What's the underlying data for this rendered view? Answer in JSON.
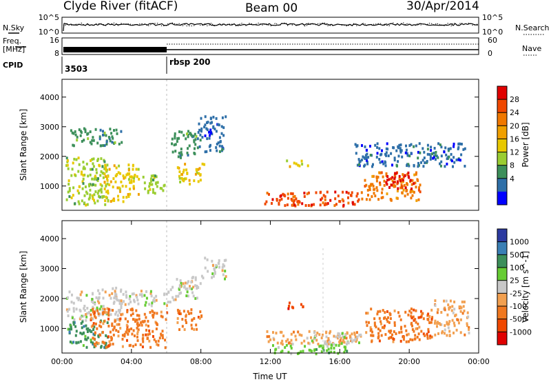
{
  "header": {
    "station": "Clyde River (fitACF)",
    "beam": "Beam 00",
    "date": "30/Apr/2014"
  },
  "side_labels": {
    "nsky": "N.Sky",
    "nsearch": "N.Search",
    "freq_line1": "Freq.",
    "freq_line2": "[MHz]",
    "nave": "Nave",
    "cpid": "CPID"
  },
  "cpid_segments": [
    {
      "label": "3503",
      "start_hour": 0,
      "end_hour": 6
    },
    {
      "label": "rbsp 200",
      "start_hour": 6,
      "end_hour": 24
    }
  ],
  "chart_data": [
    {
      "type": "line",
      "panel": "noise",
      "left_ticks": [
        "10^5",
        "10^0"
      ],
      "right_ticks": [
        "10^5",
        "10^0"
      ],
      "series": [
        {
          "name": "N.Sky"
        },
        {
          "name": "N.Search"
        }
      ]
    },
    {
      "type": "line",
      "panel": "frequency",
      "left_ticks": [
        "16",
        "8"
      ],
      "right_ticks": [
        "60",
        "0"
      ],
      "series": [
        {
          "name": "Freq."
        },
        {
          "name": "Nave"
        }
      ]
    },
    {
      "type": "heatmap",
      "panel": "power",
      "ylabel": "Slant Range [km]",
      "yticks": [
        1000,
        2000,
        3000,
        4000
      ],
      "ylim": [
        180,
        4600
      ],
      "xlim": [
        0,
        24
      ],
      "colorbar_label": "Power [dB]",
      "colorbar_ticks": [
        "28",
        "24",
        "20",
        "16",
        "12",
        "8",
        "4"
      ],
      "colors": [
        "#e00000",
        "#f04800",
        "#f07800",
        "#f0a000",
        "#e8c800",
        "#9acd32",
        "#3c8f5a",
        "#2e6fa8",
        "#0000ff"
      ],
      "patches": [
        {
          "x0": 0.2,
          "x1": 2.6,
          "y0": 400,
          "y1": 2000,
          "c": 5
        },
        {
          "x0": 2.4,
          "x1": 4.4,
          "y0": 500,
          "y1": 1800,
          "c": 4
        },
        {
          "x0": 4.4,
          "x1": 6.0,
          "y0": 800,
          "y1": 1400,
          "c": 5
        },
        {
          "x0": 0.4,
          "x1": 3.4,
          "y0": 2400,
          "y1": 3000,
          "c": 6
        },
        {
          "x0": 6.6,
          "x1": 8.2,
          "y0": 1100,
          "y1": 1800,
          "c": 4
        },
        {
          "x0": 6.2,
          "x1": 7.8,
          "y0": 2000,
          "y1": 2900,
          "c": 6
        },
        {
          "x0": 7.8,
          "x1": 9.4,
          "y0": 2200,
          "y1": 3400,
          "c": 7
        },
        {
          "x0": 11.6,
          "x1": 17.2,
          "y0": 350,
          "y1": 850,
          "c": 1
        },
        {
          "x0": 17.2,
          "x1": 20.6,
          "y0": 550,
          "y1": 1500,
          "c": 2
        },
        {
          "x0": 18.6,
          "x1": 20.2,
          "y0": 950,
          "y1": 1500,
          "c": 0
        },
        {
          "x0": 16.8,
          "x1": 23.2,
          "y0": 1700,
          "y1": 2500,
          "c": 7
        },
        {
          "x0": 12.8,
          "x1": 14.2,
          "y0": 1700,
          "y1": 1900,
          "c": 4
        }
      ]
    },
    {
      "type": "heatmap",
      "panel": "velocity",
      "ylabel": "Slant Range [km]",
      "xlabel": "Time UT",
      "yticks": [
        1000,
        2000,
        3000,
        4000
      ],
      "ylim": [
        180,
        4600
      ],
      "xlim": [
        0,
        24
      ],
      "xticks": [
        "00:00",
        "04:00",
        "08:00",
        "12:00",
        "16:00",
        "20:00",
        "00:00"
      ],
      "colorbar_label": "Velocity [m s^-1]",
      "colorbar_ticks": [
        "1000",
        "500",
        "100",
        "25",
        "-25",
        "-100",
        "-500",
        "-1000"
      ],
      "colors": [
        "#2c3aa0",
        "#3a7fb5",
        "#3c8f5a",
        "#66cc33",
        "#c8c8c8",
        "#f2a050",
        "#f07820",
        "#f04800",
        "#e00000"
      ],
      "patches": [
        {
          "x0": 0.2,
          "x1": 3.4,
          "y0": 1300,
          "y1": 2400,
          "c": 4
        },
        {
          "x0": 0.2,
          "x1": 2.6,
          "y0": 400,
          "y1": 1300,
          "c": 2
        },
        {
          "x0": 1.6,
          "x1": 6.0,
          "y0": 400,
          "y1": 1700,
          "c": 6
        },
        {
          "x0": 3.4,
          "x1": 6.2,
          "y0": 1800,
          "y1": 2300,
          "c": 4
        },
        {
          "x0": 6.6,
          "x1": 8.0,
          "y0": 1000,
          "y1": 1700,
          "c": 6
        },
        {
          "x0": 6.2,
          "x1": 8.0,
          "y0": 2000,
          "y1": 2800,
          "c": 4
        },
        {
          "x0": 8.0,
          "x1": 9.4,
          "y0": 2700,
          "y1": 3400,
          "c": 4
        },
        {
          "x0": 11.6,
          "x1": 17.2,
          "y0": 500,
          "y1": 950,
          "c": 5
        },
        {
          "x0": 11.6,
          "x1": 16.4,
          "y0": 180,
          "y1": 500,
          "c": 3
        },
        {
          "x0": 14.2,
          "x1": 17.2,
          "y0": 500,
          "y1": 900,
          "c": 4
        },
        {
          "x0": 17.4,
          "x1": 21.4,
          "y0": 600,
          "y1": 1700,
          "c": 6
        },
        {
          "x0": 21.4,
          "x1": 23.4,
          "y0": 800,
          "y1": 2000,
          "c": 5
        },
        {
          "x0": 12.8,
          "x1": 14.0,
          "y0": 1700,
          "y1": 1900,
          "c": 7
        }
      ]
    }
  ]
}
